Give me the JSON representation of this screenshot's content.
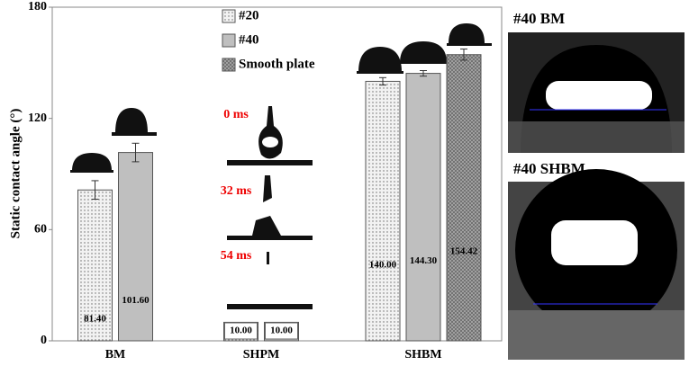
{
  "chart_data": {
    "type": "bar",
    "ylabel": "Static contact angle (°)",
    "categories": [
      "BM",
      "SHPM",
      "SHBM"
    ],
    "series": [
      {
        "name": "#20",
        "color": "#f2f2f2",
        "values": [
          81.4,
          10.0,
          140.0
        ],
        "value_labels": [
          "81.40",
          "10.00",
          "140.00"
        ],
        "errors": [
          5,
          null,
          2
        ]
      },
      {
        "name": "#40",
        "color": "#bfbfbf",
        "values": [
          101.6,
          10.0,
          144.3
        ],
        "value_labels": [
          "101.60",
          "10.00",
          "144.30"
        ],
        "errors": [
          5,
          null,
          1.5
        ]
      },
      {
        "name": "Smooth plate",
        "color": "#a6a6a6",
        "values": [
          null,
          null,
          154.42
        ],
        "value_labels": [
          null,
          null,
          "154.42"
        ],
        "errors": [
          null,
          null,
          3
        ]
      }
    ],
    "ylim": [
      0,
      180
    ],
    "yticks": [
      0,
      60,
      120,
      180
    ],
    "annotations": [
      "0 ms",
      "32 ms",
      "54 ms"
    ],
    "panels": [
      "#40 BM",
      "#40 SHBM"
    ]
  }
}
